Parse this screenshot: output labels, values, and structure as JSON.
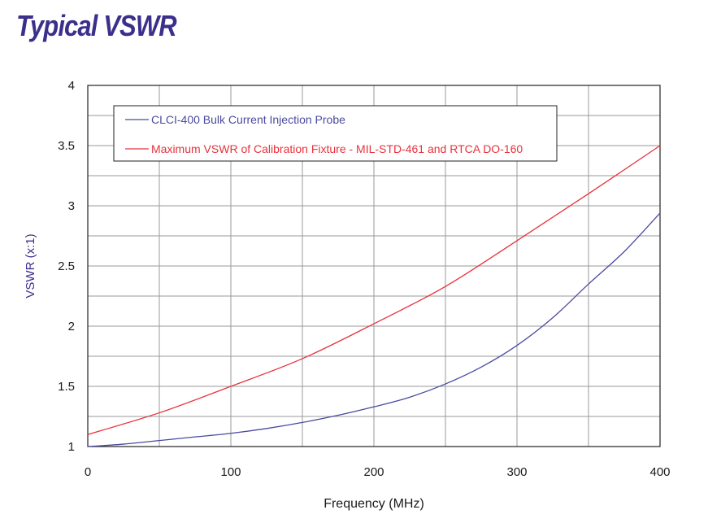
{
  "title": "Typical VSWR",
  "colors": {
    "title": "#3b2f8c",
    "probe_series": "#4a4aa0",
    "fixture_series": "#e8323c",
    "grid": "#9a9a9a",
    "frame": "#222222"
  },
  "chart_data": {
    "type": "line",
    "title": "Typical VSWR",
    "xlabel": "Frequency (MHz)",
    "ylabel": "VSWR (x:1)",
    "xlim": [
      0,
      400
    ],
    "ylim": [
      1,
      4
    ],
    "xticks": [
      0,
      100,
      200,
      300,
      400
    ],
    "yticks": [
      1,
      1.5,
      2,
      2.5,
      3,
      3.5,
      4
    ],
    "ytick_labels": [
      "1",
      "1.5",
      "2",
      "2.5",
      "3",
      "3.5",
      "4"
    ],
    "x_minor_step": 50,
    "y_minor_step": 0.25,
    "grid": true,
    "legend_position": "top-left",
    "series": [
      {
        "name": "CLCI-400 Bulk Current Injection Probe",
        "color": "#4a4aa0",
        "x": [
          0,
          25,
          50,
          75,
          100,
          125,
          150,
          175,
          200,
          225,
          250,
          275,
          300,
          325,
          350,
          375,
          400
        ],
        "y": [
          1.0,
          1.02,
          1.05,
          1.08,
          1.11,
          1.15,
          1.2,
          1.26,
          1.33,
          1.41,
          1.52,
          1.66,
          1.84,
          2.07,
          2.35,
          2.62,
          2.94
        ]
      },
      {
        "name": "Maximum VSWR of Calibration Fixture - MIL-STD-461 and RTCA DO-160",
        "color": "#e8323c",
        "x": [
          0,
          50,
          100,
          150,
          200,
          250,
          300,
          350,
          400
        ],
        "y": [
          1.1,
          1.28,
          1.5,
          1.73,
          2.02,
          2.33,
          2.71,
          3.1,
          3.5
        ]
      }
    ]
  }
}
